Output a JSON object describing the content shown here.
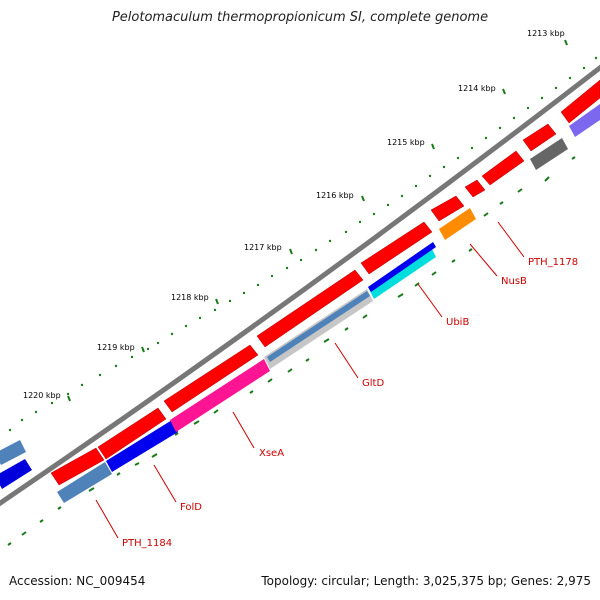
{
  "title": "Pelotomaculum thermopropionicum SI, complete genome",
  "footer": {
    "accession": "Accession: NC_009454",
    "summary": "Topology: circular; Length: 3,025,375 bp; Genes: 2,975"
  },
  "colors": {
    "backbone": "#7a7a7a",
    "forward_gene": "#ff0000",
    "tick": "#1a7a1a",
    "label": "#cc0000"
  },
  "scale_labels": [
    "1213 kbp",
    "1214 kbp",
    "1215 kbp",
    "1216 kbp",
    "1217 kbp",
    "1218 kbp",
    "1219 kbp",
    "1220 kbp"
  ],
  "gene_labels": [
    "PTH_1178",
    "NusB",
    "UbiB",
    "GltD",
    "XseA",
    "FolD",
    "PTH_1184"
  ]
}
